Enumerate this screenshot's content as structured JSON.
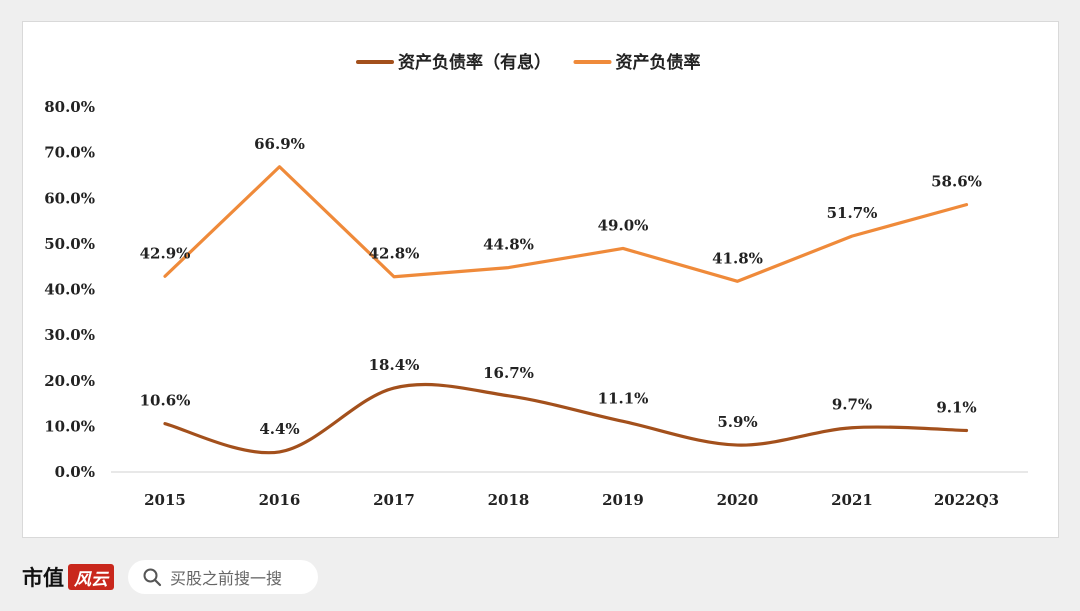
{
  "chart_data": {
    "type": "line",
    "categories": [
      "2015",
      "2016",
      "2017",
      "2018",
      "2019",
      "2020",
      "2021",
      "2022Q3"
    ],
    "series": [
      {
        "name": "资产负债率（有息）",
        "values": [
          10.6,
          4.4,
          18.4,
          16.7,
          11.1,
          5.9,
          9.7,
          9.1
        ],
        "labels": [
          "10.6%",
          "4.4%",
          "18.4%",
          "16.7%",
          "11.1%",
          "5.9%",
          "9.7%",
          "9.1%"
        ],
        "color": "#a3501c",
        "smooth": true
      },
      {
        "name": "资产负债率",
        "values": [
          42.9,
          66.9,
          42.8,
          44.8,
          49.0,
          41.8,
          51.7,
          58.6
        ],
        "labels": [
          "42.9%",
          "66.9%",
          "42.8%",
          "44.8%",
          "49.0%",
          "41.8%",
          "51.7%",
          "58.6%"
        ],
        "color": "#ef8a3a",
        "smooth": false
      }
    ],
    "yticks": [
      "0.0%",
      "10.0%",
      "20.0%",
      "30.0%",
      "40.0%",
      "50.0%",
      "60.0%",
      "70.0%",
      "80.0%"
    ],
    "ylim": [
      0,
      80
    ],
    "grid": false,
    "legend": "top-center"
  },
  "footer": {
    "brand_text": "市值",
    "brand_mark": "风云",
    "search_placeholder": "买股之前搜一搜"
  }
}
